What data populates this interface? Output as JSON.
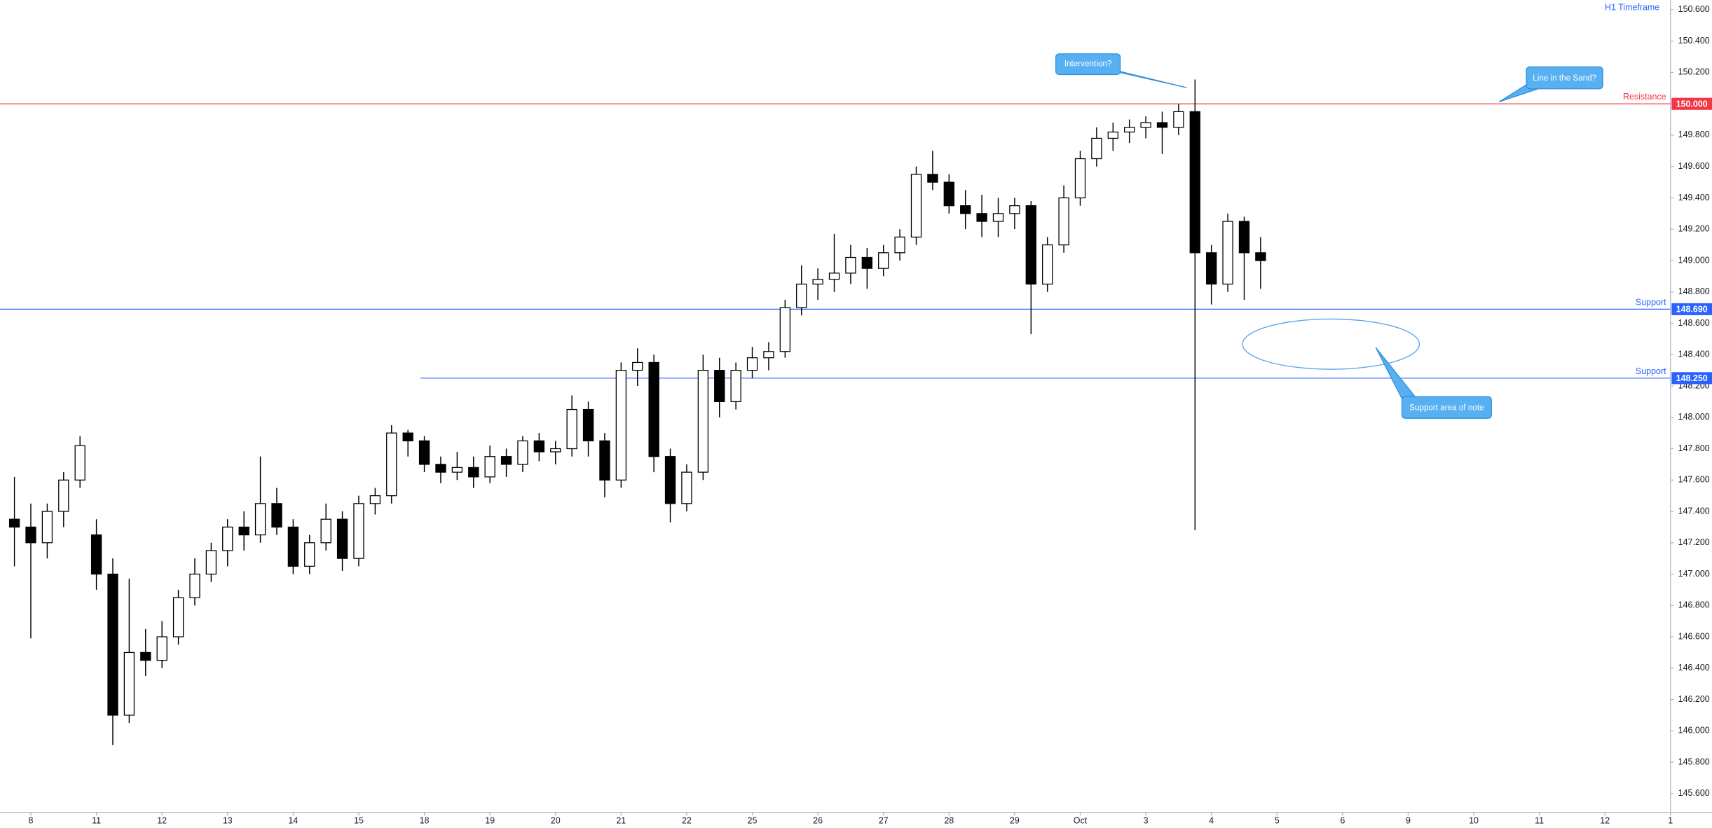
{
  "chart_data": {
    "type": "candlestick",
    "timeframe": "H1 Timeframe",
    "up_color": "#ffffff",
    "down_color": "#000000",
    "outline_color": "#000000",
    "xlim": [
      -0.47,
      25
    ],
    "ylim": [
      145.48,
      150.66
    ],
    "xticks": [
      {
        "value": 0,
        "label": "8"
      },
      {
        "value": 1,
        "label": "11"
      },
      {
        "value": 2,
        "label": "12"
      },
      {
        "value": 3,
        "label": "13"
      },
      {
        "value": 4,
        "label": "14"
      },
      {
        "value": 5,
        "label": "15"
      },
      {
        "value": 6,
        "label": "18"
      },
      {
        "value": 7,
        "label": "19"
      },
      {
        "value": 8,
        "label": "20"
      },
      {
        "value": 9,
        "label": "21"
      },
      {
        "value": 10,
        "label": "22"
      },
      {
        "value": 11,
        "label": "25"
      },
      {
        "value": 12,
        "label": "26"
      },
      {
        "value": 13,
        "label": "27"
      },
      {
        "value": 14,
        "label": "28"
      },
      {
        "value": 15,
        "label": "29"
      },
      {
        "value": 16,
        "label": "Oct"
      },
      {
        "value": 17,
        "label": "3"
      },
      {
        "value": 18,
        "label": "4"
      },
      {
        "value": 19,
        "label": "5"
      },
      {
        "value": 20,
        "label": "6"
      },
      {
        "value": 21,
        "label": "9"
      },
      {
        "value": 22,
        "label": "10"
      },
      {
        "value": 23,
        "label": "11"
      },
      {
        "value": 24,
        "label": "12"
      },
      {
        "value": 25,
        "label": "1"
      }
    ],
    "yticks": [
      {
        "value": 145.6,
        "label": "145.600"
      },
      {
        "value": 145.8,
        "label": "145.800"
      },
      {
        "value": 146.0,
        "label": "146.000"
      },
      {
        "value": 146.2,
        "label": "146.200"
      },
      {
        "value": 146.4,
        "label": "146.400"
      },
      {
        "value": 146.6,
        "label": "146.600"
      },
      {
        "value": 146.8,
        "label": "146.800"
      },
      {
        "value": 147.0,
        "label": "147.000"
      },
      {
        "value": 147.2,
        "label": "147.200"
      },
      {
        "value": 147.4,
        "label": "147.400"
      },
      {
        "value": 147.6,
        "label": "147.600"
      },
      {
        "value": 147.8,
        "label": "147.800"
      },
      {
        "value": 148.0,
        "label": "148.000"
      },
      {
        "value": 148.2,
        "label": "148.200"
      },
      {
        "value": 148.4,
        "label": "148.400"
      },
      {
        "value": 148.6,
        "label": "148.600"
      },
      {
        "value": 148.8,
        "label": "148.800"
      },
      {
        "value": 149.0,
        "label": "149.000"
      },
      {
        "value": 149.2,
        "label": "149.200"
      },
      {
        "value": 149.4,
        "label": "149.400"
      },
      {
        "value": 149.6,
        "label": "149.600"
      },
      {
        "value": 149.8,
        "label": "149.800"
      },
      {
        "value": 150.0,
        "label": "150.000"
      },
      {
        "value": 150.2,
        "label": "150.200"
      },
      {
        "value": 150.4,
        "label": "150.400"
      },
      {
        "value": 150.6,
        "label": "150.600"
      }
    ],
    "levels": [
      {
        "label": "Resistance",
        "value": 150.0,
        "value_label": "150.000",
        "color": "#f23645"
      },
      {
        "label": "Support",
        "value": 148.69,
        "value_label": "148.690",
        "color": "#2962ff"
      },
      {
        "label": "Support",
        "value": 148.25,
        "value_label": "148.250",
        "color": "#2962ff",
        "x_start": 5.94
      }
    ],
    "annotations": [
      "Intervention?",
      "Line in the Sand?",
      "Support area of note"
    ],
    "candles": [
      {
        "x": -0.25,
        "open": 147.35,
        "high": 147.62,
        "low": 147.05,
        "close": 147.3
      },
      {
        "x": 0,
        "open": 147.3,
        "high": 147.45,
        "low": 146.59,
        "close": 147.2
      },
      {
        "x": 0.25,
        "open": 147.2,
        "high": 147.45,
        "low": 147.1,
        "close": 147.4
      },
      {
        "x": 0.5,
        "open": 147.4,
        "high": 147.65,
        "low": 147.3,
        "close": 147.6
      },
      {
        "x": 0.75,
        "open": 147.6,
        "high": 147.88,
        "low": 147.55,
        "close": 147.82
      },
      {
        "x": 1,
        "open": 147.25,
        "high": 147.35,
        "low": 146.9,
        "close": 147.0
      },
      {
        "x": 1.25,
        "open": 147.0,
        "high": 147.1,
        "low": 145.91,
        "close": 146.1
      },
      {
        "x": 1.5,
        "open": 146.1,
        "high": 146.97,
        "low": 146.05,
        "close": 146.5
      },
      {
        "x": 1.75,
        "open": 146.5,
        "high": 146.65,
        "low": 146.35,
        "close": 146.45
      },
      {
        "x": 2,
        "open": 146.45,
        "high": 146.7,
        "low": 146.4,
        "close": 146.6
      },
      {
        "x": 2.25,
        "open": 146.6,
        "high": 146.9,
        "low": 146.55,
        "close": 146.85
      },
      {
        "x": 2.5,
        "open": 146.85,
        "high": 147.1,
        "low": 146.8,
        "close": 147.0
      },
      {
        "x": 2.75,
        "open": 147.0,
        "high": 147.2,
        "low": 146.95,
        "close": 147.15
      },
      {
        "x": 3,
        "open": 147.15,
        "high": 147.35,
        "low": 147.05,
        "close": 147.3
      },
      {
        "x": 3.25,
        "open": 147.3,
        "high": 147.4,
        "low": 147.15,
        "close": 147.25
      },
      {
        "x": 3.5,
        "open": 147.25,
        "high": 147.75,
        "low": 147.2,
        "close": 147.45
      },
      {
        "x": 3.75,
        "open": 147.45,
        "high": 147.55,
        "low": 147.25,
        "close": 147.3
      },
      {
        "x": 4,
        "open": 147.3,
        "high": 147.35,
        "low": 147.0,
        "close": 147.05
      },
      {
        "x": 4.25,
        "open": 147.05,
        "high": 147.25,
        "low": 147.0,
        "close": 147.2
      },
      {
        "x": 4.5,
        "open": 147.2,
        "high": 147.45,
        "low": 147.15,
        "close": 147.35
      },
      {
        "x": 4.75,
        "open": 147.35,
        "high": 147.4,
        "low": 147.02,
        "close": 147.1
      },
      {
        "x": 5,
        "open": 147.1,
        "high": 147.5,
        "low": 147.05,
        "close": 147.45
      },
      {
        "x": 5.25,
        "open": 147.45,
        "high": 147.55,
        "low": 147.38,
        "close": 147.5
      },
      {
        "x": 5.5,
        "open": 147.5,
        "high": 147.95,
        "low": 147.45,
        "close": 147.9
      },
      {
        "x": 5.75,
        "open": 147.9,
        "high": 147.92,
        "low": 147.75,
        "close": 147.85
      },
      {
        "x": 6,
        "open": 147.85,
        "high": 147.88,
        "low": 147.65,
        "close": 147.7
      },
      {
        "x": 6.25,
        "open": 147.7,
        "high": 147.75,
        "low": 147.58,
        "close": 147.65
      },
      {
        "x": 6.5,
        "open": 147.65,
        "high": 147.78,
        "low": 147.6,
        "close": 147.68
      },
      {
        "x": 6.75,
        "open": 147.68,
        "high": 147.75,
        "low": 147.55,
        "close": 147.62
      },
      {
        "x": 7,
        "open": 147.62,
        "high": 147.82,
        "low": 147.58,
        "close": 147.75
      },
      {
        "x": 7.25,
        "open": 147.75,
        "high": 147.8,
        "low": 147.62,
        "close": 147.7
      },
      {
        "x": 7.5,
        "open": 147.7,
        "high": 147.88,
        "low": 147.65,
        "close": 147.85
      },
      {
        "x": 7.75,
        "open": 147.85,
        "high": 147.9,
        "low": 147.72,
        "close": 147.78
      },
      {
        "x": 8,
        "open": 147.78,
        "high": 147.85,
        "low": 147.7,
        "close": 147.8
      },
      {
        "x": 8.25,
        "open": 147.8,
        "high": 148.14,
        "low": 147.75,
        "close": 148.05
      },
      {
        "x": 8.5,
        "open": 148.05,
        "high": 148.1,
        "low": 147.75,
        "close": 147.85
      },
      {
        "x": 8.75,
        "open": 147.85,
        "high": 147.9,
        "low": 147.49,
        "close": 147.6
      },
      {
        "x": 9,
        "open": 147.6,
        "high": 148.35,
        "low": 147.55,
        "close": 148.3
      },
      {
        "x": 9.25,
        "open": 148.3,
        "high": 148.44,
        "low": 148.2,
        "close": 148.35
      },
      {
        "x": 9.5,
        "open": 148.35,
        "high": 148.4,
        "low": 147.65,
        "close": 147.75
      },
      {
        "x": 9.75,
        "open": 147.75,
        "high": 147.8,
        "low": 147.33,
        "close": 147.45
      },
      {
        "x": 10,
        "open": 147.45,
        "high": 147.7,
        "low": 147.4,
        "close": 147.65
      },
      {
        "x": 10.25,
        "open": 147.65,
        "high": 148.4,
        "low": 147.6,
        "close": 148.3
      },
      {
        "x": 10.5,
        "open": 148.3,
        "high": 148.38,
        "low": 148.0,
        "close": 148.1
      },
      {
        "x": 10.75,
        "open": 148.1,
        "high": 148.35,
        "low": 148.05,
        "close": 148.3
      },
      {
        "x": 11,
        "open": 148.3,
        "high": 148.45,
        "low": 148.25,
        "close": 148.38
      },
      {
        "x": 11.25,
        "open": 148.38,
        "high": 148.48,
        "low": 148.3,
        "close": 148.42
      },
      {
        "x": 11.5,
        "open": 148.42,
        "high": 148.75,
        "low": 148.38,
        "close": 148.7
      },
      {
        "x": 11.75,
        "open": 148.7,
        "high": 148.97,
        "low": 148.65,
        "close": 148.85
      },
      {
        "x": 12,
        "open": 148.85,
        "high": 148.95,
        "low": 148.75,
        "close": 148.88
      },
      {
        "x": 12.25,
        "open": 148.88,
        "high": 149.17,
        "low": 148.8,
        "close": 148.92
      },
      {
        "x": 12.5,
        "open": 148.92,
        "high": 149.1,
        "low": 148.85,
        "close": 149.02
      },
      {
        "x": 12.75,
        "open": 149.02,
        "high": 149.08,
        "low": 148.82,
        "close": 148.95
      },
      {
        "x": 13,
        "open": 148.95,
        "high": 149.1,
        "low": 148.9,
        "close": 149.05
      },
      {
        "x": 13.25,
        "open": 149.05,
        "high": 149.2,
        "low": 149.0,
        "close": 149.15
      },
      {
        "x": 13.5,
        "open": 149.15,
        "high": 149.6,
        "low": 149.1,
        "close": 149.55
      },
      {
        "x": 13.75,
        "open": 149.55,
        "high": 149.7,
        "low": 149.45,
        "close": 149.5
      },
      {
        "x": 14,
        "open": 149.5,
        "high": 149.55,
        "low": 149.3,
        "close": 149.35
      },
      {
        "x": 14.25,
        "open": 149.35,
        "high": 149.45,
        "low": 149.2,
        "close": 149.3
      },
      {
        "x": 14.5,
        "open": 149.3,
        "high": 149.42,
        "low": 149.15,
        "close": 149.25
      },
      {
        "x": 14.75,
        "open": 149.25,
        "high": 149.4,
        "low": 149.15,
        "close": 149.3
      },
      {
        "x": 15,
        "open": 149.3,
        "high": 149.4,
        "low": 149.2,
        "close": 149.35
      },
      {
        "x": 15.25,
        "open": 149.35,
        "high": 149.38,
        "low": 148.53,
        "close": 148.85
      },
      {
        "x": 15.5,
        "open": 148.85,
        "high": 149.15,
        "low": 148.8,
        "close": 149.1
      },
      {
        "x": 15.75,
        "open": 149.1,
        "high": 149.48,
        "low": 149.05,
        "close": 149.4
      },
      {
        "x": 16,
        "open": 149.4,
        "high": 149.7,
        "low": 149.35,
        "close": 149.65
      },
      {
        "x": 16.25,
        "open": 149.65,
        "high": 149.85,
        "low": 149.6,
        "close": 149.78
      },
      {
        "x": 16.5,
        "open": 149.78,
        "high": 149.88,
        "low": 149.7,
        "close": 149.82
      },
      {
        "x": 16.75,
        "open": 149.82,
        "high": 149.9,
        "low": 149.75,
        "close": 149.85
      },
      {
        "x": 17,
        "open": 149.85,
        "high": 149.92,
        "low": 149.78,
        "close": 149.88
      },
      {
        "x": 17.25,
        "open": 149.88,
        "high": 149.95,
        "low": 149.68,
        "close": 149.85
      },
      {
        "x": 17.5,
        "open": 149.85,
        "high": 150.0,
        "low": 149.8,
        "close": 149.95
      },
      {
        "x": 17.75,
        "open": 149.95,
        "high": 150.155,
        "low": 147.28,
        "close": 149.05
      },
      {
        "x": 18,
        "open": 149.05,
        "high": 149.1,
        "low": 148.72,
        "close": 148.85
      },
      {
        "x": 18.25,
        "open": 148.85,
        "high": 149.3,
        "low": 148.8,
        "close": 149.25
      },
      {
        "x": 18.5,
        "open": 149.25,
        "high": 149.28,
        "low": 148.75,
        "close": 149.05
      },
      {
        "x": 18.75,
        "open": 149.05,
        "high": 149.15,
        "low": 148.82,
        "close": 149.0
      }
    ]
  }
}
